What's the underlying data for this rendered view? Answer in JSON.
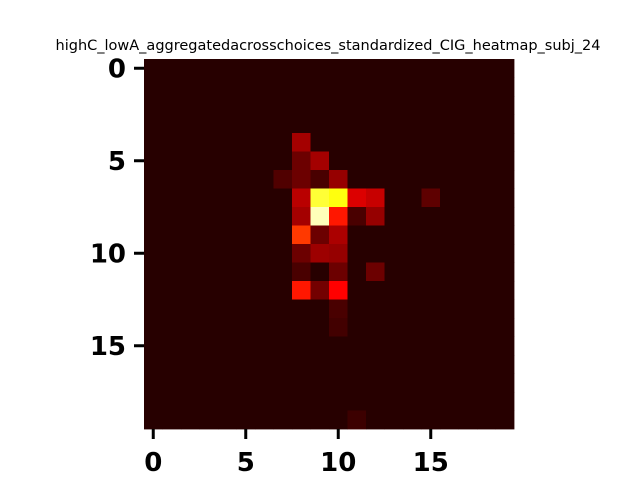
{
  "chart_data": {
    "type": "heatmap",
    "title": "highC_lowA_aggregatedacrosschoices_standardized_CIG_heatmap_subj_24",
    "xlabel": "",
    "ylabel": "",
    "rows": 20,
    "cols": 20,
    "xlim": [
      -0.5,
      19.5
    ],
    "ylim": [
      19.5,
      -0.5
    ],
    "xticks": [
      0,
      5,
      10,
      15
    ],
    "yticks": [
      0,
      5,
      10,
      15
    ],
    "xtick_labels": [
      "0",
      "5",
      "10",
      "15"
    ],
    "ytick_labels": [
      "0",
      "5",
      "10",
      "15"
    ],
    "colormap": "hot",
    "vmin": 0,
    "vmax": 1,
    "background_value": 0.04,
    "cells": [
      {
        "row": 4,
        "col": 8,
        "value": 0.22
      },
      {
        "row": 5,
        "col": 8,
        "value": 0.14
      },
      {
        "row": 5,
        "col": 9,
        "value": 0.22
      },
      {
        "row": 6,
        "col": 7,
        "value": 0.1
      },
      {
        "row": 6,
        "col": 8,
        "value": 0.14
      },
      {
        "row": 6,
        "col": 9,
        "value": 0.09
      },
      {
        "row": 6,
        "col": 10,
        "value": 0.2
      },
      {
        "row": 7,
        "col": 8,
        "value": 0.25
      },
      {
        "row": 7,
        "col": 9,
        "value": 0.8
      },
      {
        "row": 7,
        "col": 10,
        "value": 0.76
      },
      {
        "row": 7,
        "col": 11,
        "value": 0.3
      },
      {
        "row": 7,
        "col": 12,
        "value": 0.27
      },
      {
        "row": 7,
        "col": 15,
        "value": 0.12
      },
      {
        "row": 8,
        "col": 8,
        "value": 0.22
      },
      {
        "row": 8,
        "col": 9,
        "value": 0.93
      },
      {
        "row": 8,
        "col": 10,
        "value": 0.4
      },
      {
        "row": 8,
        "col": 11,
        "value": 0.09
      },
      {
        "row": 8,
        "col": 12,
        "value": 0.2
      },
      {
        "row": 9,
        "col": 8,
        "value": 0.45
      },
      {
        "row": 9,
        "col": 9,
        "value": 0.14
      },
      {
        "row": 9,
        "col": 10,
        "value": 0.23
      },
      {
        "row": 10,
        "col": 8,
        "value": 0.14
      },
      {
        "row": 10,
        "col": 9,
        "value": 0.21
      },
      {
        "row": 10,
        "col": 10,
        "value": 0.2
      },
      {
        "row": 11,
        "col": 8,
        "value": 0.09
      },
      {
        "row": 11,
        "col": 10,
        "value": 0.14
      },
      {
        "row": 11,
        "col": 12,
        "value": 0.14
      },
      {
        "row": 12,
        "col": 8,
        "value": 0.4
      },
      {
        "row": 12,
        "col": 9,
        "value": 0.15
      },
      {
        "row": 12,
        "col": 10,
        "value": 0.36
      },
      {
        "row": 13,
        "col": 10,
        "value": 0.09
      },
      {
        "row": 14,
        "col": 10,
        "value": 0.08
      },
      {
        "row": 19,
        "col": 11,
        "value": 0.07
      }
    ]
  }
}
